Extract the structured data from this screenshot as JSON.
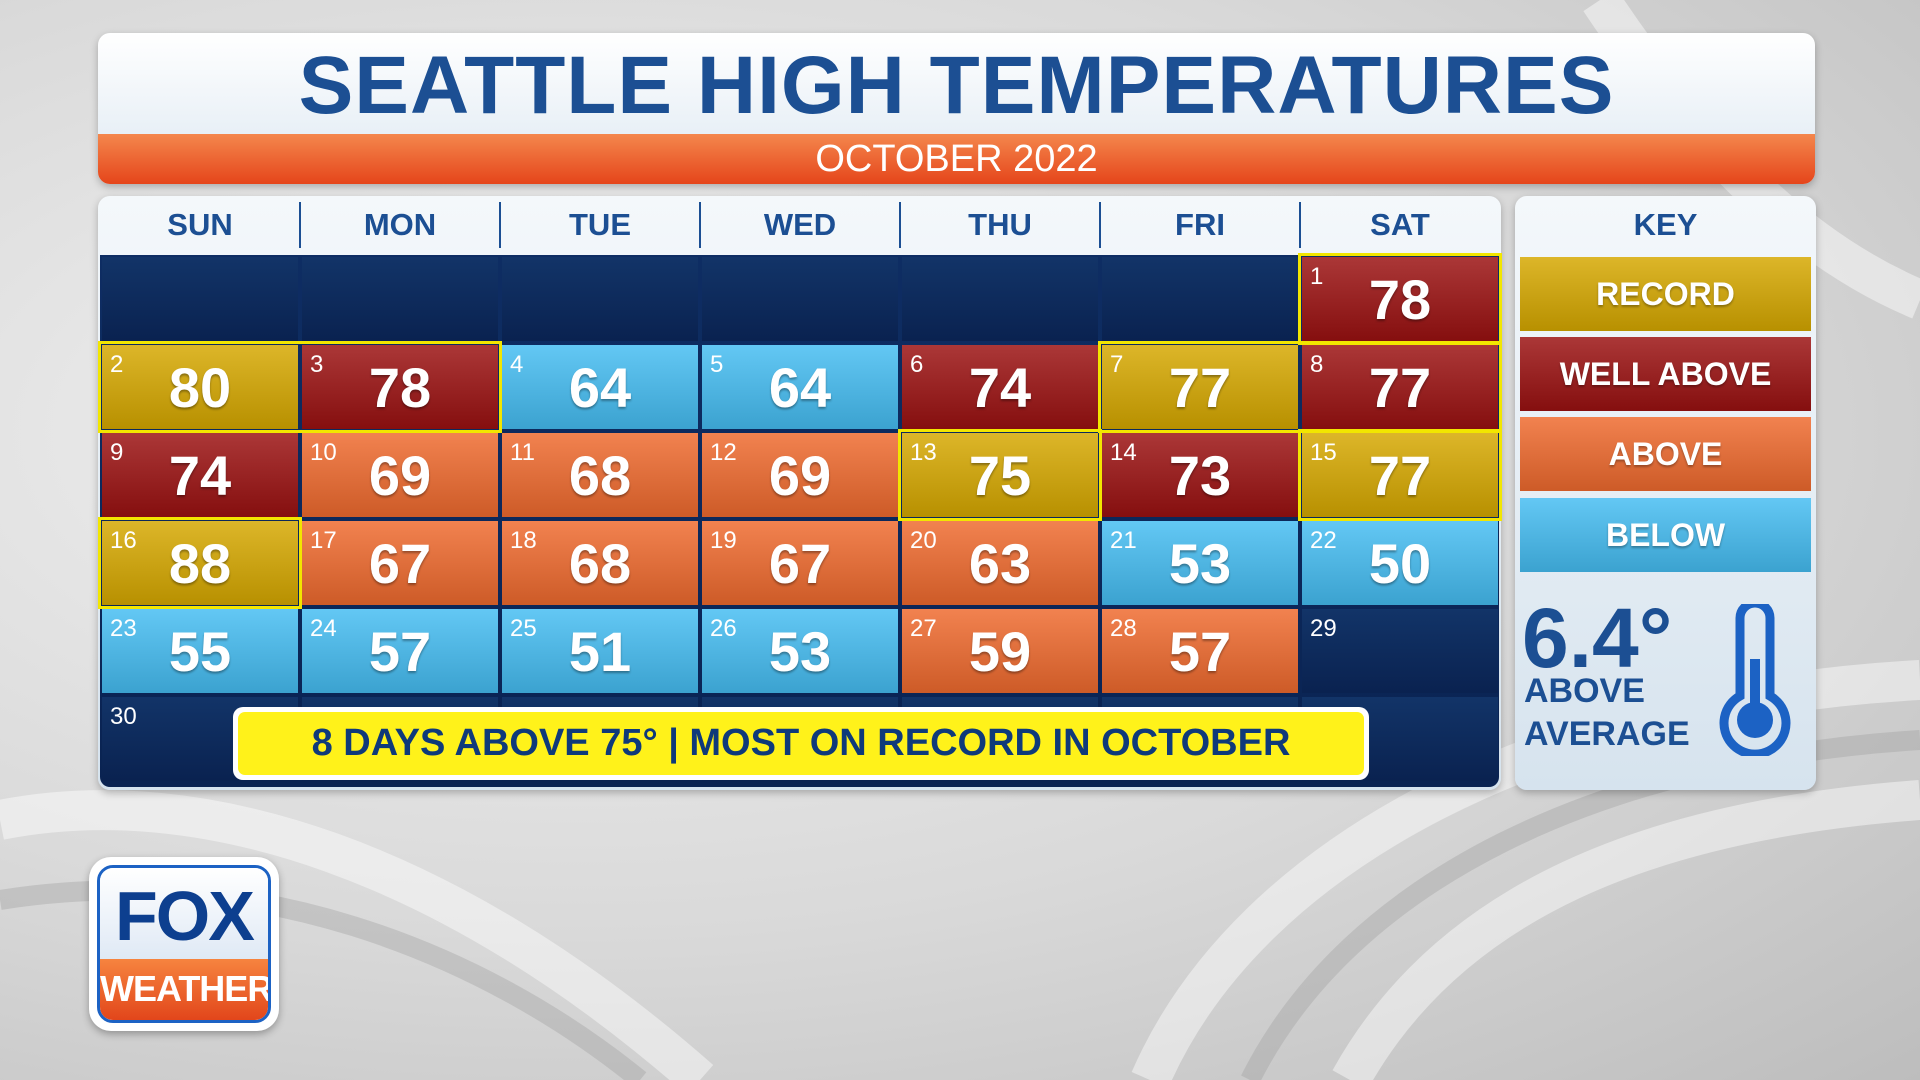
{
  "header": {
    "title": "SEATTLE HIGH TEMPERATURES",
    "subtitle": "OCTOBER 2022"
  },
  "calendar": {
    "weekdays": [
      "SUN",
      "MON",
      "TUE",
      "WED",
      "THU",
      "FRI",
      "SAT"
    ],
    "weeks": [
      [
        null,
        null,
        null,
        null,
        null,
        null,
        {
          "day": 1,
          "temp": 78,
          "color": "#9b1111",
          "outline": true
        }
      ],
      [
        {
          "day": 2,
          "temp": 80,
          "color": "#d6a800",
          "outline": true
        },
        {
          "day": 3,
          "temp": 78,
          "color": "#9b1111",
          "outline": true
        },
        {
          "day": 4,
          "temp": 64,
          "color": "#45bdf2"
        },
        {
          "day": 5,
          "temp": 64,
          "color": "#45bdf2"
        },
        {
          "day": 6,
          "temp": 74,
          "color": "#9b1111"
        },
        {
          "day": 7,
          "temp": 77,
          "color": "#d6a800",
          "outline": true
        },
        {
          "day": 8,
          "temp": 77,
          "color": "#9b1111",
          "outline": true
        }
      ],
      [
        {
          "day": 9,
          "temp": 74,
          "color": "#9b1111"
        },
        {
          "day": 10,
          "temp": 69,
          "color": "#ef6a2e"
        },
        {
          "day": 11,
          "temp": 68,
          "color": "#ef6a2e"
        },
        {
          "day": 12,
          "temp": 69,
          "color": "#ef6a2e"
        },
        {
          "day": 13,
          "temp": 75,
          "color": "#d6a800",
          "outline": true
        },
        {
          "day": 14,
          "temp": 73,
          "color": "#9b1111"
        },
        {
          "day": 15,
          "temp": 77,
          "color": "#d6a800",
          "outline": true
        }
      ],
      [
        {
          "day": 16,
          "temp": 88,
          "color": "#d6a800",
          "outline": true
        },
        {
          "day": 17,
          "temp": 67,
          "color": "#ef6a2e"
        },
        {
          "day": 18,
          "temp": 68,
          "color": "#ef6a2e"
        },
        {
          "day": 19,
          "temp": 67,
          "color": "#ef6a2e"
        },
        {
          "day": 20,
          "temp": 63,
          "color": "#ef6a2e"
        },
        {
          "day": 21,
          "temp": 53,
          "color": "#45bdf2"
        },
        {
          "day": 22,
          "temp": 50,
          "color": "#45bdf2"
        }
      ],
      [
        {
          "day": 23,
          "temp": 55,
          "color": "#45bdf2"
        },
        {
          "day": 24,
          "temp": 57,
          "color": "#45bdf2"
        },
        {
          "day": 25,
          "temp": 51,
          "color": "#45bdf2"
        },
        {
          "day": 26,
          "temp": 53,
          "color": "#45bdf2"
        },
        {
          "day": 27,
          "temp": 59,
          "color": "#ef6a2e"
        },
        {
          "day": 28,
          "temp": 57,
          "color": "#ef6a2e"
        },
        {
          "day": 29
        }
      ],
      [
        {
          "day": 30
        },
        null,
        null,
        null,
        null,
        null,
        null
      ]
    ],
    "banner": "8 DAYS ABOVE 75° | MOST ON RECORD IN OCTOBER"
  },
  "key": {
    "title": "KEY",
    "items": [
      {
        "label": "RECORD",
        "color": "#d6a800"
      },
      {
        "label": "WELL ABOVE",
        "color": "#9b1111"
      },
      {
        "label": "ABOVE",
        "color": "#ef6a2e"
      },
      {
        "label": "BELOW",
        "color": "#45bdf2"
      }
    ],
    "anomaly": {
      "value": "6.4°",
      "lines": [
        "ABOVE",
        "AVERAGE"
      ]
    }
  },
  "logo": {
    "top": "FOX",
    "bottom": "WEATHER"
  }
}
